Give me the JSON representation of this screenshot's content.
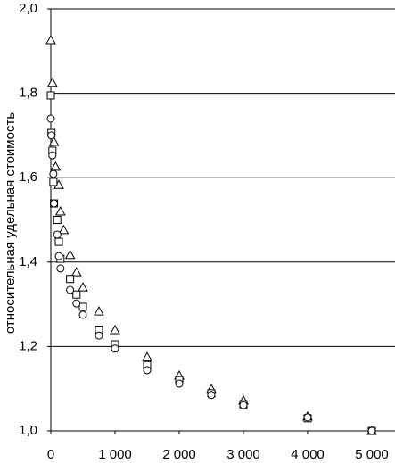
{
  "chart_data": {
    "type": "scatter",
    "y_label": "относительная  удельная стоимость",
    "xlim": [
      0,
      5000
    ],
    "ylim": [
      1.0,
      2.0
    ],
    "xticks": [
      0,
      {
        "value": 1000,
        "label": "1 000"
      },
      {
        "value": 2000,
        "label": "2 000"
      },
      {
        "value": 3000,
        "label": "3 000"
      },
      {
        "value": 4000,
        "label": "4 000"
      },
      {
        "value": 5000,
        "label": "5 000"
      }
    ],
    "yticks": [
      {
        "value": 1.0,
        "label": "1,0"
      },
      {
        "value": 1.2,
        "label": "1,2"
      },
      {
        "value": 1.4,
        "label": "1,4"
      },
      {
        "value": 1.6,
        "label": "1,6"
      },
      {
        "value": 1.8,
        "label": "1,8"
      },
      {
        "value": 2.0,
        "label": "2,0"
      }
    ],
    "grid": true,
    "series": [
      {
        "marker": "triangle",
        "color": "#000000",
        "x": [
          0,
          25,
          50,
          75,
          125,
          150,
          200,
          300,
          400,
          500,
          750,
          1000,
          1500,
          2000,
          2500,
          3000,
          4000,
          5000
        ],
        "values": [
          1.926,
          1.825,
          1.685,
          1.626,
          1.583,
          1.52,
          1.476,
          1.417,
          1.376,
          1.34,
          1.283,
          1.239,
          1.175,
          1.131,
          1.099,
          1.072,
          1.034,
          1.0
        ]
      },
      {
        "marker": "square",
        "color": "#000000",
        "x": [
          0,
          10,
          25,
          40,
          50,
          100,
          125,
          150,
          300,
          400,
          500,
          750,
          1000,
          1500,
          2000,
          2500,
          3000,
          4000,
          5000
        ],
        "values": [
          1.795,
          1.706,
          1.664,
          1.59,
          1.539,
          1.5,
          1.448,
          1.408,
          1.36,
          1.323,
          1.294,
          1.24,
          1.205,
          1.156,
          1.12,
          1.089,
          1.063,
          1.03,
          1.0
        ]
      },
      {
        "marker": "circle",
        "color": "#000000",
        "x": [
          0,
          10,
          25,
          40,
          50,
          100,
          125,
          150,
          300,
          400,
          500,
          750,
          1000,
          1500,
          2000,
          2500,
          3000,
          4000,
          5000
        ],
        "values": [
          1.74,
          1.7,
          1.653,
          1.609,
          1.539,
          1.465,
          1.414,
          1.385,
          1.334,
          1.302,
          1.275,
          1.226,
          1.195,
          1.144,
          1.112,
          1.085,
          1.061,
          1.032,
          1.0
        ]
      }
    ]
  }
}
